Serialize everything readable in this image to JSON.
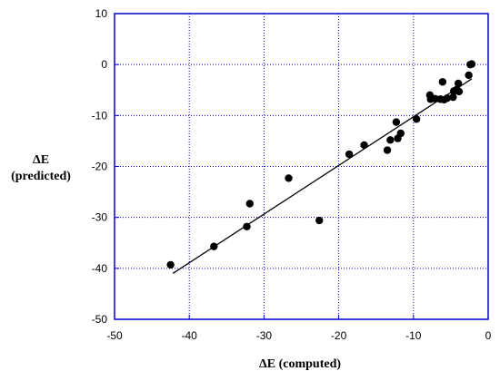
{
  "chart_data": {
    "type": "scatter",
    "title": "",
    "xlabel": "ΔE (computed)",
    "ylabel_line1": "ΔE",
    "ylabel_line2": "(predicted)",
    "xlim": [
      -50,
      0
    ],
    "ylim": [
      -50,
      10
    ],
    "xticks": [
      -50,
      -40,
      -30,
      -20,
      -10,
      0
    ],
    "yticks": [
      10,
      0,
      -10,
      -20,
      -30,
      -40,
      -50
    ],
    "grid": true,
    "grid_color": "#0000cc",
    "frame_color": "#0000cc",
    "point_color": "#000000",
    "points": [
      {
        "x": -42.5,
        "y": -39.3
      },
      {
        "x": -36.7,
        "y": -35.7
      },
      {
        "x": -32.3,
        "y": -31.8
      },
      {
        "x": -31.9,
        "y": -27.3
      },
      {
        "x": -26.7,
        "y": -22.3
      },
      {
        "x": -22.6,
        "y": -30.6
      },
      {
        "x": -18.6,
        "y": -17.6
      },
      {
        "x": -16.6,
        "y": -15.8
      },
      {
        "x": -13.5,
        "y": -16.8
      },
      {
        "x": -13.1,
        "y": -14.8
      },
      {
        "x": -12.3,
        "y": -11.3
      },
      {
        "x": -12.1,
        "y": -14.5
      },
      {
        "x": -11.7,
        "y": -13.5
      },
      {
        "x": -9.6,
        "y": -10.7
      },
      {
        "x": -7.8,
        "y": -6.0
      },
      {
        "x": -7.7,
        "y": -6.8
      },
      {
        "x": -7.1,
        "y": -6.7
      },
      {
        "x": -6.4,
        "y": -6.8
      },
      {
        "x": -6.1,
        "y": -3.4
      },
      {
        "x": -5.9,
        "y": -6.9
      },
      {
        "x": -5.5,
        "y": -6.6
      },
      {
        "x": -4.7,
        "y": -6.4
      },
      {
        "x": -4.6,
        "y": -5.2
      },
      {
        "x": -4.2,
        "y": -4.9
      },
      {
        "x": -4.0,
        "y": -3.7
      },
      {
        "x": -3.9,
        "y": -5.3
      },
      {
        "x": -2.6,
        "y": -2.1
      },
      {
        "x": -2.4,
        "y": 0.0
      },
      {
        "x": -2.2,
        "y": 0.1
      }
    ],
    "fit_line": {
      "x1": -42.2,
      "y1": -41.0,
      "x2": -2.2,
      "y2": -2.8
    }
  }
}
